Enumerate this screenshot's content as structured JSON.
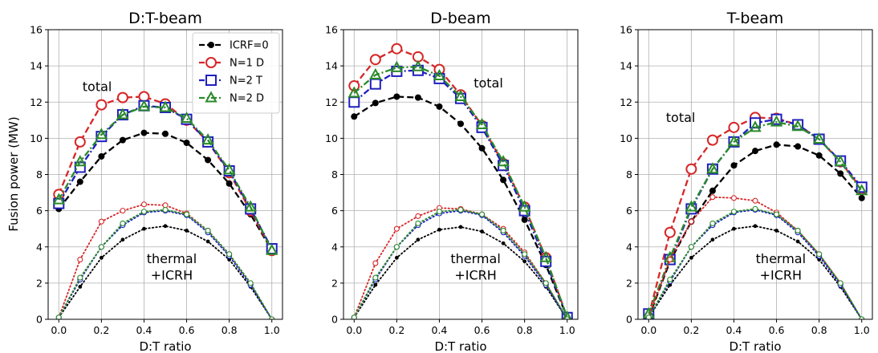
{
  "figure": {
    "ylabel": "Fusion power (MW)"
  },
  "chart_data": [
    {
      "type": "line",
      "title": "D:T-beam",
      "xlabel": "D:T ratio",
      "ylabel": "Fusion power (MW)",
      "xlim": [
        -0.05,
        1.05
      ],
      "ylim": [
        0,
        16
      ],
      "xticks": [
        "0.0",
        "0.2",
        "0.4",
        "0.6",
        "0.8",
        "1.0"
      ],
      "yticks": [
        "0",
        "2",
        "4",
        "6",
        "8",
        "10",
        "12",
        "14",
        "16"
      ],
      "grid": true,
      "legend_position": "top-right",
      "annotations": [
        {
          "text": "total",
          "x": 0.18,
          "y": 12.6
        },
        {
          "text": "thermal",
          "x": 0.53,
          "y": 3.1
        },
        {
          "text": "+ICRH",
          "x": 0.53,
          "y": 2.2
        }
      ],
      "x": [
        0.0,
        0.1,
        0.2,
        0.3,
        0.4,
        0.5,
        0.6,
        0.7,
        0.8,
        0.9,
        1.0
      ],
      "series": [
        {
          "name": "ICRF=0",
          "kind": "total",
          "values": [
            6.1,
            7.6,
            9.0,
            9.9,
            10.3,
            10.25,
            9.75,
            8.8,
            7.5,
            5.8,
            3.8
          ]
        },
        {
          "name": "N=1 D",
          "kind": "total",
          "values": [
            6.9,
            9.8,
            11.85,
            12.25,
            12.3,
            11.9,
            11.0,
            9.8,
            8.1,
            6.0,
            3.8
          ]
        },
        {
          "name": "N=2 T",
          "kind": "total",
          "values": [
            6.4,
            8.4,
            10.1,
            11.3,
            11.8,
            11.7,
            11.05,
            9.8,
            8.2,
            6.1,
            3.9
          ]
        },
        {
          "name": "N=2 D",
          "kind": "total",
          "values": [
            6.6,
            8.7,
            10.2,
            11.3,
            11.75,
            11.7,
            11.1,
            9.9,
            8.25,
            6.2,
            3.8
          ]
        },
        {
          "name": "ICRF=0",
          "kind": "thermal",
          "values": [
            0.1,
            1.8,
            3.4,
            4.4,
            5.0,
            5.15,
            4.9,
            4.3,
            3.3,
            1.8,
            0.0
          ]
        },
        {
          "name": "N=1 D",
          "kind": "thermal",
          "values": [
            0.1,
            3.3,
            5.4,
            6.0,
            6.35,
            6.3,
            5.85,
            4.9,
            3.6,
            2.0,
            0.0
          ]
        },
        {
          "name": "N=2 T",
          "kind": "thermal",
          "values": [
            0.1,
            2.2,
            4.0,
            5.2,
            5.9,
            6.0,
            5.75,
            4.8,
            3.5,
            1.9,
            0.0
          ]
        },
        {
          "name": "N=2 D",
          "kind": "thermal",
          "values": [
            0.1,
            2.3,
            4.0,
            5.3,
            5.95,
            6.05,
            5.8,
            4.9,
            3.6,
            2.0,
            0.0
          ]
        }
      ]
    },
    {
      "type": "line",
      "title": "D-beam",
      "xlabel": "D:T ratio",
      "ylabel": "",
      "xlim": [
        -0.05,
        1.05
      ],
      "ylim": [
        0,
        16
      ],
      "xticks": [
        "0.0",
        "0.2",
        "0.4",
        "0.6",
        "0.8",
        "1.0"
      ],
      "yticks": [
        "0",
        "2",
        "4",
        "6",
        "8",
        "10",
        "12",
        "14",
        "16"
      ],
      "grid": true,
      "annotations": [
        {
          "text": "total",
          "x": 0.63,
          "y": 12.8
        },
        {
          "text": "thermal",
          "x": 0.57,
          "y": 3.1
        },
        {
          "text": "+ICRH",
          "x": 0.57,
          "y": 2.2
        }
      ],
      "x": [
        0.0,
        0.1,
        0.2,
        0.3,
        0.4,
        0.5,
        0.6,
        0.7,
        0.8,
        0.9,
        1.0
      ],
      "series": [
        {
          "name": "ICRF=0",
          "kind": "total",
          "values": [
            11.2,
            11.95,
            12.3,
            12.25,
            11.75,
            10.8,
            9.45,
            7.7,
            5.5,
            3.0,
            0.1
          ]
        },
        {
          "name": "N=1 D",
          "kind": "total",
          "values": [
            12.9,
            14.35,
            14.95,
            14.5,
            13.8,
            12.4,
            10.7,
            8.6,
            6.2,
            3.4,
            0.1
          ]
        },
        {
          "name": "N=2 T",
          "kind": "total",
          "values": [
            12.0,
            13.0,
            13.7,
            13.75,
            13.3,
            12.2,
            10.6,
            8.5,
            6.0,
            3.2,
            0.1
          ]
        },
        {
          "name": "N=2 D",
          "kind": "total",
          "values": [
            12.5,
            13.5,
            13.9,
            13.95,
            13.45,
            12.3,
            10.75,
            8.7,
            6.2,
            3.4,
            0.1
          ]
        },
        {
          "name": "ICRF=0",
          "kind": "thermal",
          "values": [
            0.1,
            1.9,
            3.4,
            4.4,
            4.95,
            5.1,
            4.85,
            4.2,
            3.2,
            1.8,
            0.0
          ]
        },
        {
          "name": "N=1 D",
          "kind": "thermal",
          "values": [
            0.1,
            3.1,
            5.0,
            5.7,
            6.15,
            6.1,
            5.8,
            5.0,
            3.7,
            2.0,
            0.0
          ]
        },
        {
          "name": "N=2 T",
          "kind": "thermal",
          "values": [
            0.1,
            2.2,
            4.0,
            5.2,
            5.85,
            6.0,
            5.75,
            4.8,
            3.5,
            1.9,
            0.0
          ]
        },
        {
          "name": "N=2 D",
          "kind": "thermal",
          "values": [
            0.1,
            2.3,
            4.0,
            5.3,
            5.95,
            6.05,
            5.8,
            4.9,
            3.6,
            2.0,
            0.0
          ]
        }
      ]
    },
    {
      "type": "line",
      "title": "T-beam",
      "xlabel": "D:T ratio",
      "ylabel": "",
      "xlim": [
        -0.05,
        1.05
      ],
      "ylim": [
        0,
        16
      ],
      "xticks": [
        "0.0",
        "0.2",
        "0.4",
        "0.6",
        "0.8",
        "1.0"
      ],
      "yticks": [
        "0",
        "2",
        "4",
        "6",
        "8",
        "10",
        "12",
        "14",
        "16"
      ],
      "grid": true,
      "annotations": [
        {
          "text": "total",
          "x": 0.15,
          "y": 10.9
        },
        {
          "text": "thermal",
          "x": 0.62,
          "y": 3.1
        },
        {
          "text": "+ICRH",
          "x": 0.62,
          "y": 2.2
        }
      ],
      "x": [
        0.0,
        0.1,
        0.2,
        0.3,
        0.4,
        0.5,
        0.6,
        0.7,
        0.8,
        0.9,
        1.0
      ],
      "series": [
        {
          "name": "ICRF=0",
          "kind": "total",
          "values": [
            0.1,
            3.2,
            5.4,
            7.1,
            8.5,
            9.3,
            9.65,
            9.55,
            9.05,
            8.05,
            6.7
          ]
        },
        {
          "name": "N=1 D",
          "kind": "total",
          "values": [
            0.2,
            4.8,
            8.3,
            9.9,
            10.6,
            11.15,
            11.1,
            10.75,
            9.95,
            8.7,
            7.2
          ]
        },
        {
          "name": "N=2 T",
          "kind": "total",
          "values": [
            0.3,
            3.3,
            6.1,
            8.3,
            9.8,
            10.85,
            11.05,
            10.75,
            9.95,
            8.75,
            7.3
          ]
        },
        {
          "name": "N=2 D",
          "kind": "total",
          "values": [
            0.3,
            3.4,
            6.2,
            8.3,
            9.8,
            10.6,
            10.9,
            10.65,
            9.95,
            8.7,
            7.1
          ]
        },
        {
          "name": "ICRF=0",
          "kind": "thermal",
          "values": [
            0.1,
            1.9,
            3.4,
            4.4,
            5.0,
            5.15,
            4.9,
            4.3,
            3.3,
            1.8,
            0.0
          ]
        },
        {
          "name": "N=1 D",
          "kind": "thermal",
          "values": [
            0.1,
            3.3,
            5.4,
            6.75,
            6.7,
            6.55,
            5.9,
            4.9,
            3.6,
            2.0,
            0.0
          ]
        },
        {
          "name": "N=2 T",
          "kind": "thermal",
          "values": [
            0.1,
            2.1,
            4.0,
            5.2,
            5.9,
            6.05,
            5.75,
            4.8,
            3.5,
            1.9,
            0.0
          ]
        },
        {
          "name": "N=2 D",
          "kind": "thermal",
          "values": [
            0.1,
            2.2,
            4.0,
            5.3,
            5.95,
            6.1,
            5.8,
            4.9,
            3.6,
            2.0,
            0.0
          ]
        }
      ]
    }
  ],
  "styles": [
    {
      "name": "ICRF=0",
      "color": "#000000",
      "marker": "circle",
      "line": "dashed"
    },
    {
      "name": "N=1 D",
      "color": "#d62728",
      "marker": "circle-open",
      "line": "dashed"
    },
    {
      "name": "N=2 T",
      "color": "#1f1fbf",
      "marker": "square-open",
      "line": "dashdot"
    },
    {
      "name": "N=2 D",
      "color": "#2a8a2a",
      "marker": "triangle-open",
      "line": "dashdot"
    }
  ]
}
